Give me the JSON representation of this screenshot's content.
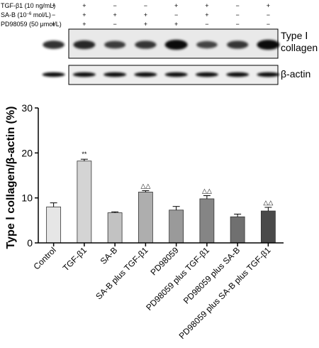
{
  "treatment_table": {
    "rows": [
      {
        "label": "TGF-β1 (10 ng/mL)",
        "signs": [
          "+",
          "+",
          "−",
          "−",
          "+",
          "+",
          "−",
          "+"
        ]
      },
      {
        "label_prefix": "SA-B (10",
        "label_sup": "−6",
        "label_suffix": " mol/L)",
        "signs": [
          "−",
          "+",
          "+",
          "+",
          "−",
          "+",
          "−",
          "−"
        ]
      },
      {
        "label": "PD98059 (50 μmol/L)",
        "signs": [
          "+",
          "+",
          "−",
          "+",
          "+",
          "−",
          "−",
          "−"
        ]
      }
    ]
  },
  "blots": {
    "collagen_label_line1": "Type Ⅰ",
    "collagen_label_line2": "collagen",
    "actin_label": "β-actin",
    "collagen_band_intensity": [
      0.75,
      0.8,
      0.65,
      0.7,
      1.0,
      0.6,
      0.7,
      1.0
    ],
    "actin_band_intensity": [
      0.9,
      0.9,
      0.9,
      0.9,
      0.9,
      0.9,
      0.9,
      0.9
    ]
  },
  "chart_data": {
    "type": "bar",
    "categories": [
      "Control",
      "TGF-β1",
      "SA-B",
      "SA-B plus TGF-β1",
      "PD98059",
      "PD98059 plus TGF-β1",
      "PD98059 plus SA-B",
      "PD98059 plus SA-B plus TGF-β1"
    ],
    "values": [
      8.0,
      18.2,
      6.7,
      11.3,
      7.3,
      9.8,
      5.8,
      7.1
    ],
    "errors": [
      0.9,
      0.4,
      0.2,
      0.3,
      0.8,
      0.7,
      0.6,
      0.8
    ],
    "annotations": [
      "",
      "**",
      "",
      "△△",
      "",
      "△△",
      "",
      "△△"
    ],
    "bar_colors": [
      "#e6e6e6",
      "#d4d4d4",
      "#c2c2c2",
      "#aeaeae",
      "#9a9a9a",
      "#858585",
      "#707070",
      "#4a4a4a"
    ],
    "ylabel": "Type Ⅰ collagen/β-actin (%)",
    "xlabel": "",
    "ylim": [
      0,
      30
    ],
    "yticks": [
      0,
      10,
      20,
      30
    ],
    "grid": false,
    "legend": "none"
  }
}
